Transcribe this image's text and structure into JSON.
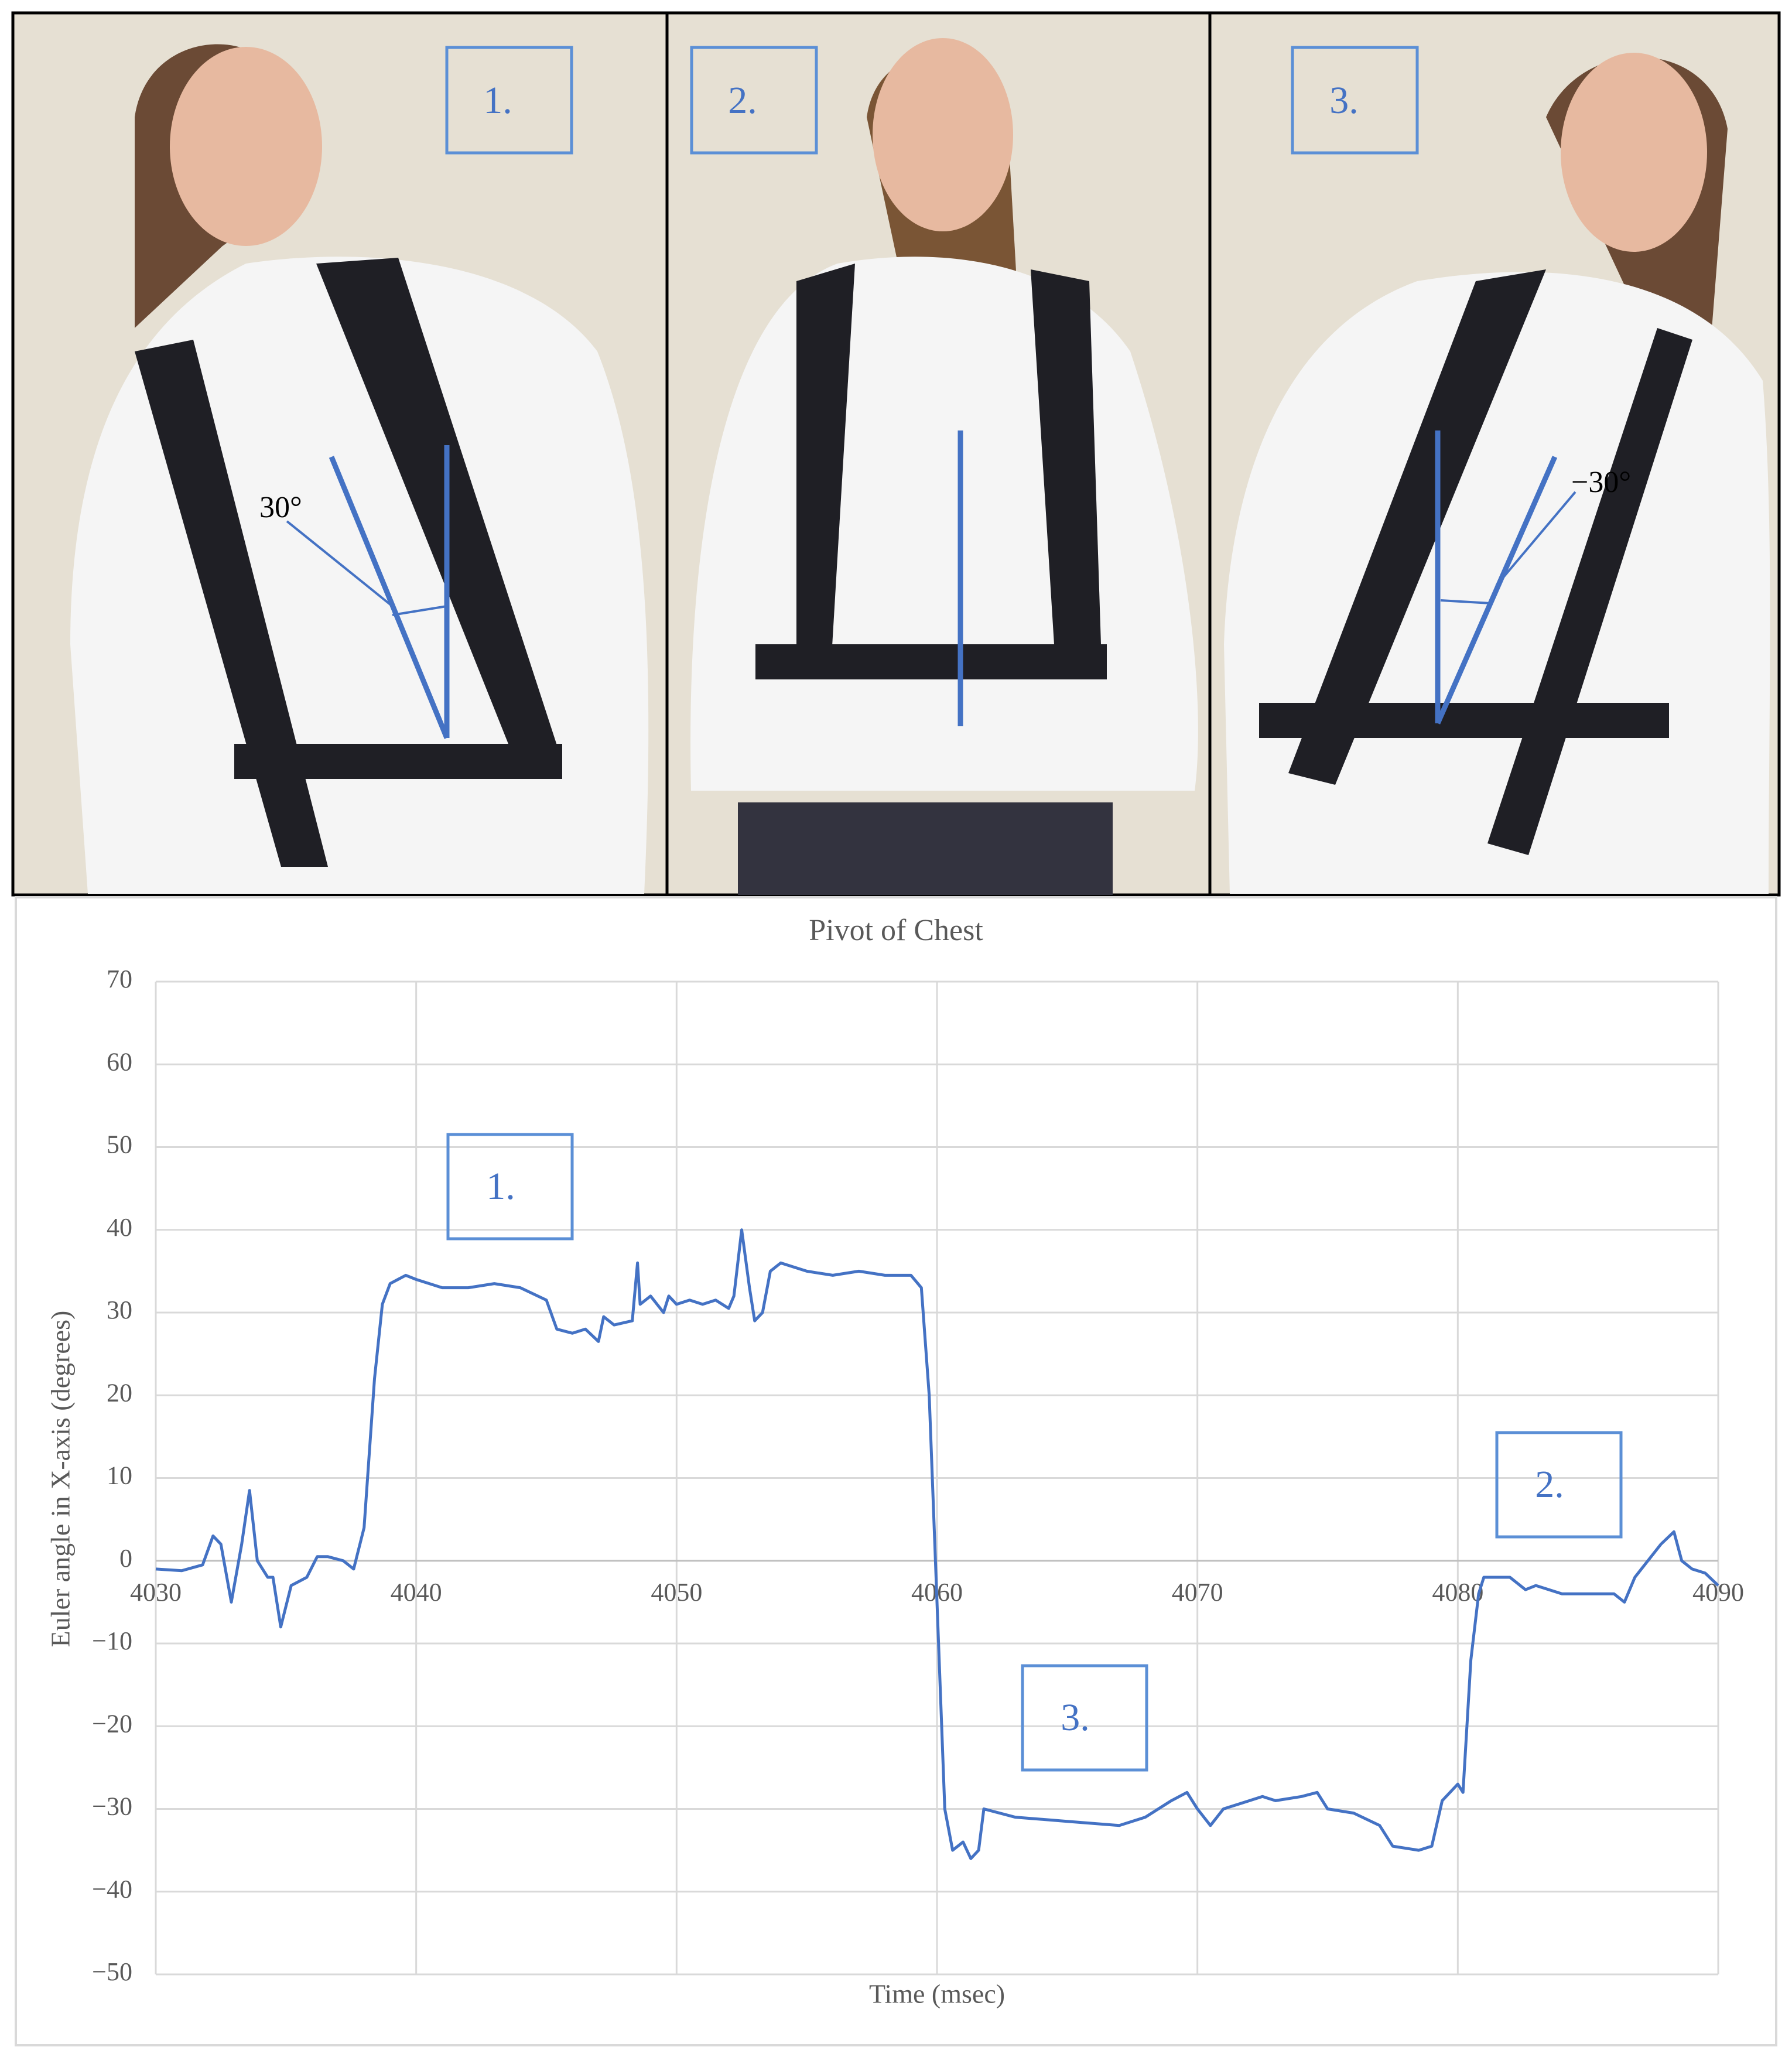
{
  "photos": [
    {
      "label": "1.",
      "angle": "30°"
    },
    {
      "label": "2."
    },
    {
      "label": "3.",
      "angle": "−30°"
    }
  ],
  "chart_data": {
    "type": "line",
    "title": "Pivot of Chest",
    "x_label": "Time (msec)",
    "y_label": "Euler angle in X-axis (degrees)",
    "xlim": [
      4030,
      4090
    ],
    "xticks": [
      4030,
      4040,
      4050,
      4060,
      4070,
      4080,
      4090
    ],
    "ylim": [
      -50,
      70
    ],
    "yticks": [
      {
        "value": -50,
        "label": "−50"
      },
      {
        "value": -40,
        "label": "−40"
      },
      {
        "value": -30,
        "label": "−30"
      },
      {
        "value": -20,
        "label": "−20"
      },
      {
        "value": -10,
        "label": "−10"
      },
      0,
      10,
      20,
      30,
      40,
      50,
      60,
      70
    ],
    "grid": true,
    "annotations": [
      "1.",
      "3.",
      "2."
    ],
    "x": [
      4030,
      4031,
      4031.8,
      4032.2,
      4032.5,
      4032.9,
      4033.3,
      4033.6,
      4033.9,
      4034.3,
      4034.5,
      4034.8,
      4035.2,
      4035.8,
      4036.2,
      4036.6,
      4037.2,
      4037.6,
      4038,
      4038.4,
      4038.7,
      4039,
      4039.3,
      4039.6,
      4040,
      4041,
      4042,
      4043,
      4044,
      4045,
      4045.4,
      4046,
      4046.5,
      4047,
      4047.2,
      4047.6,
      4048.3,
      4048.5,
      4048.6,
      4049,
      4049.5,
      4049.7,
      4050,
      4050.5,
      4051,
      4051.5,
      4052,
      4052.2,
      4052.5,
      4052.8,
      4053,
      4053.3,
      4053.6,
      4054,
      4055,
      4056,
      4057,
      4058,
      4059,
      4059.4,
      4059.7,
      4060,
      4060.3,
      4060.6,
      4061,
      4061.3,
      4061.6,
      4061.8,
      4063,
      4065,
      4067,
      4068,
      4069,
      4069.6,
      4070,
      4070.5,
      4071,
      4072,
      4072.5,
      4073,
      4074,
      4074.6,
      4075,
      4076,
      4077,
      4077.5,
      4078.5,
      4079,
      4079.4,
      4080,
      4080.2,
      4080.5,
      4080.8,
      4081,
      4082,
      4082.6,
      4083,
      4084,
      4085,
      4086,
      4086.4,
      4086.8,
      4087.3,
      4087.8,
      4088.3,
      4088.6,
      4089,
      4089.5,
      4090
    ],
    "series": [
      {
        "color": "#4472c4",
        "values": [
          -1,
          -1.2,
          -0.5,
          3,
          2,
          -5,
          2,
          8.5,
          0,
          -2,
          -2,
          -8,
          -3,
          -2,
          0.5,
          0.5,
          0,
          -1,
          4,
          22,
          31,
          33.5,
          34,
          34.5,
          34,
          33,
          33,
          33.5,
          33,
          31.5,
          28,
          27.5,
          28,
          26.5,
          29.5,
          28.5,
          29,
          36,
          31,
          32,
          30,
          32,
          31,
          31.5,
          31,
          31.5,
          30.5,
          32,
          40,
          33,
          29,
          30,
          35,
          36,
          35,
          34.5,
          35,
          34.5,
          34.5,
          33,
          20,
          -5,
          -30,
          -35,
          -34,
          -36,
          -35,
          -30,
          -31,
          -31.5,
          -32,
          -31,
          -29,
          -28,
          -30,
          -32,
          -30,
          -29,
          -28.5,
          -29,
          -28.5,
          -28,
          -30,
          -30.5,
          -32,
          -34.5,
          -35,
          -34.5,
          -29,
          -27,
          -28,
          -12,
          -4,
          -2,
          -2,
          -3.5,
          -3,
          -4,
          -4,
          -4,
          -5,
          -2,
          0,
          2,
          3.5,
          0,
          -1,
          -1.5,
          -3
        ]
      }
    ]
  }
}
